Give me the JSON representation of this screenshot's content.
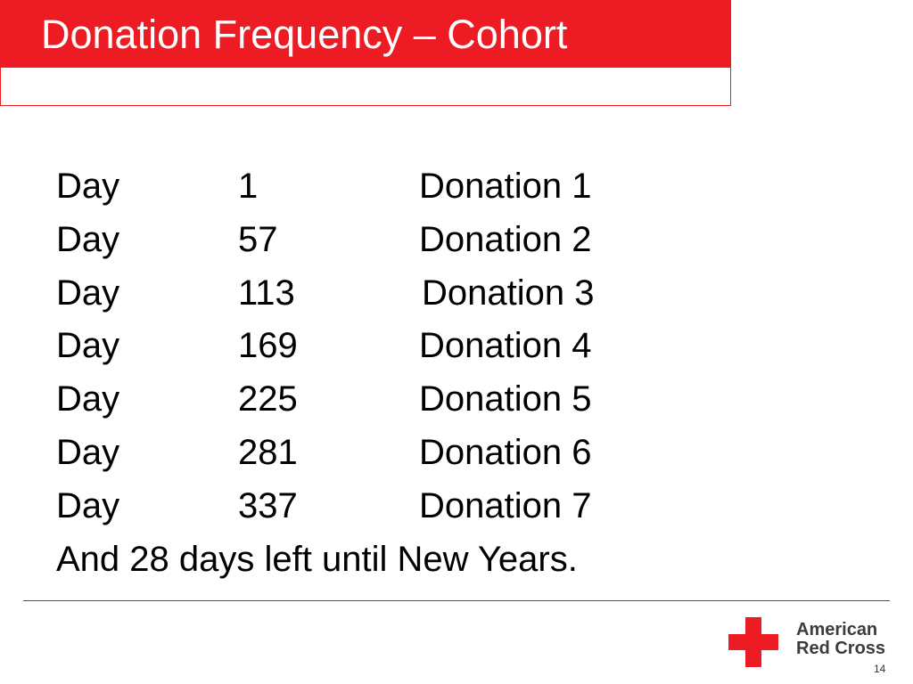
{
  "slide": {
    "title": "Donation Frequency – Cohort",
    "page_number": "14"
  },
  "schedule": {
    "rows": [
      {
        "word": "Day",
        "day": "1",
        "donation": "Donation 1"
      },
      {
        "word": "Day",
        "day": "57",
        "donation": "Donation 2"
      },
      {
        "word": "Day",
        "day": "113",
        "donation": "Donation 3"
      },
      {
        "word": "Day",
        "day": "169",
        "donation": "Donation 4"
      },
      {
        "word": "Day",
        "day": "225",
        "donation": "Donation 5"
      },
      {
        "word": "Day",
        "day": "281",
        "donation": "Donation 6"
      },
      {
        "word": "Day",
        "day": "337",
        "donation": "Donation 7"
      }
    ],
    "footnote": "And 28 days left until New Years."
  },
  "logo": {
    "line1": "American",
    "line2": "Red Cross",
    "icon": "red-cross-icon",
    "color": "#ed1c24"
  },
  "colors": {
    "accent": "#ed1c24"
  }
}
